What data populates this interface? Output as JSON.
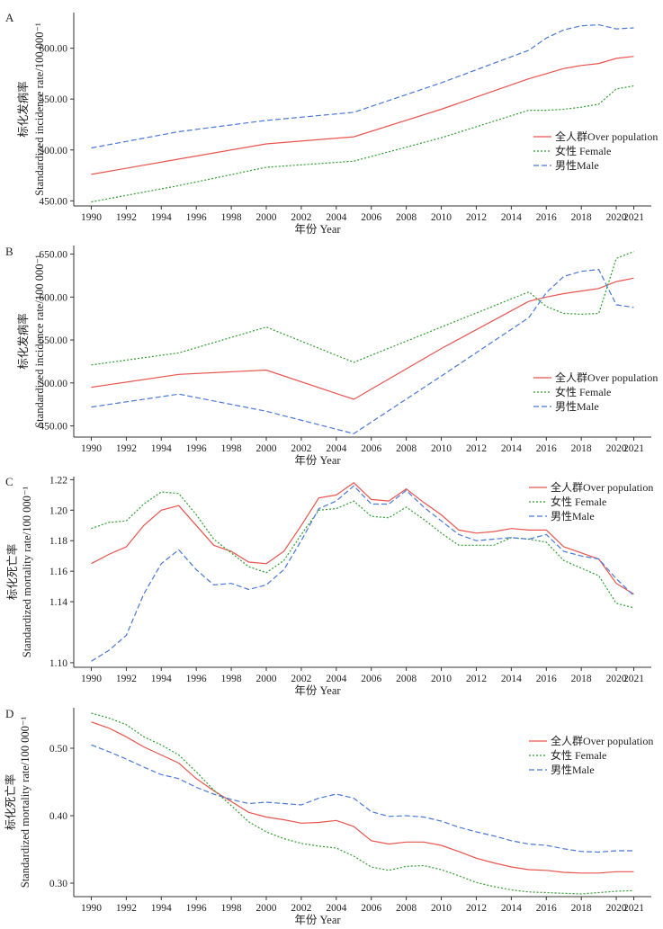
{
  "colors": {
    "total": "#e8544e",
    "female": "#2e9e2e",
    "male": "#4a78d6"
  },
  "legend": {
    "total": "全人群Over population",
    "female": "女性 Female",
    "male": "男性Male"
  },
  "chart_data": [
    {
      "panel": "A",
      "type": "line",
      "ylabel_cn": "标化发病率",
      "ylabel_en": "Standardized incidence rate/100 000⁻¹",
      "xlabel": "年份 Year",
      "xlim": [
        1989,
        2022
      ],
      "ylim": [
        445,
        635
      ],
      "xticks": [
        1990,
        1992,
        1994,
        1996,
        1998,
        2000,
        2002,
        2004,
        2006,
        2008,
        2010,
        2012,
        2014,
        2016,
        2018,
        2020,
        2021
      ],
      "yticks": [
        450,
        500,
        550,
        600
      ],
      "ytick_labels": [
        "450.00",
        "500.00",
        "550.00",
        "600.00"
      ],
      "legend_position": "right",
      "x": [
        1990,
        1995,
        2000,
        2005,
        2010,
        2015,
        2016,
        2017,
        2018,
        2019,
        2020,
        2021
      ],
      "series": [
        {
          "key": "total",
          "name": "全人群Over population",
          "values": [
            476,
            491,
            506,
            513,
            540,
            570,
            575,
            580,
            583,
            585,
            590,
            592
          ]
        },
        {
          "key": "female",
          "name": "女性 Female",
          "values": [
            449,
            465,
            483,
            489,
            512,
            539,
            539,
            540,
            542,
            545,
            560,
            563
          ]
        },
        {
          "key": "male",
          "name": "男性Male",
          "values": [
            502,
            518,
            529,
            537,
            566,
            598,
            610,
            618,
            622,
            623,
            619,
            620
          ]
        }
      ]
    },
    {
      "panel": "B",
      "type": "line",
      "ylabel_cn": "标化发病率",
      "ylabel_en": "Standardized incidence rate/100 000⁻¹",
      "xlabel": "年份 Year",
      "xlim": [
        1989,
        2022
      ],
      "ylim": [
        437,
        660
      ],
      "xticks": [
        1990,
        1992,
        1994,
        1996,
        1998,
        2000,
        2002,
        2004,
        2006,
        2008,
        2010,
        2012,
        2014,
        2016,
        2018,
        2020,
        2021
      ],
      "yticks": [
        450,
        500,
        550,
        600,
        650
      ],
      "ytick_labels": [
        "450.00",
        "500.00",
        "550.00",
        "600.00",
        "650.00"
      ],
      "legend_position": "bottom-right",
      "x": [
        1990,
        1995,
        2000,
        2005,
        2010,
        2015,
        2016,
        2017,
        2018,
        2019,
        2020,
        2021
      ],
      "series": [
        {
          "key": "total",
          "name": "全人群Over population",
          "values": [
            495,
            510,
            515,
            481,
            540,
            595,
            600,
            604,
            607,
            610,
            618,
            622
          ]
        },
        {
          "key": "female",
          "name": "女性 Female",
          "values": [
            521,
            535,
            565,
            524,
            565,
            606,
            589,
            581,
            580,
            581,
            645,
            653
          ]
        },
        {
          "key": "male",
          "name": "男性Male",
          "values": [
            472,
            487,
            467,
            441,
            508,
            576,
            605,
            624,
            630,
            632,
            591,
            588
          ]
        }
      ]
    },
    {
      "panel": "C",
      "type": "line",
      "ylabel_cn": "标化死亡率",
      "ylabel_en": "Standardized mortality rate/100 000⁻¹",
      "xlabel": "年份 Year",
      "xlim": [
        1989,
        2022
      ],
      "ylim": [
        1.097,
        1.222
      ],
      "xticks": [
        1990,
        1992,
        1994,
        1996,
        1998,
        2000,
        2002,
        2004,
        2006,
        2008,
        2010,
        2012,
        2014,
        2016,
        2018,
        2020,
        2021
      ],
      "yticks": [
        1.1,
        1.14,
        1.16,
        1.18,
        1.2,
        1.22
      ],
      "ytick_labels": [
        "1.10",
        "1.14",
        "1.16",
        "1.18",
        "1.20",
        "1.22"
      ],
      "legend_position": "top-right",
      "x": [
        1990,
        1991,
        1992,
        1993,
        1994,
        1995,
        1996,
        1997,
        1998,
        1999,
        2000,
        2001,
        2002,
        2003,
        2004,
        2005,
        2006,
        2007,
        2008,
        2009,
        2010,
        2011,
        2012,
        2013,
        2014,
        2015,
        2016,
        2017,
        2018,
        2019,
        2020,
        2021
      ],
      "series": [
        {
          "key": "total",
          "name": "全人群Over population",
          "values": [
            1.165,
            1.171,
            1.176,
            1.19,
            1.2,
            1.203,
            1.19,
            1.177,
            1.173,
            1.166,
            1.165,
            1.173,
            1.19,
            1.208,
            1.21,
            1.218,
            1.207,
            1.206,
            1.214,
            1.205,
            1.197,
            1.187,
            1.185,
            1.186,
            1.188,
            1.187,
            1.187,
            1.176,
            1.172,
            1.168,
            1.152,
            1.145
          ]
        },
        {
          "key": "female",
          "name": "女性 Female",
          "values": [
            1.188,
            1.192,
            1.193,
            1.204,
            1.212,
            1.211,
            1.197,
            1.181,
            1.172,
            1.163,
            1.159,
            1.167,
            1.184,
            1.2,
            1.201,
            1.206,
            1.196,
            1.195,
            1.202,
            1.194,
            1.185,
            1.177,
            1.177,
            1.177,
            1.182,
            1.181,
            1.179,
            1.167,
            1.162,
            1.157,
            1.139,
            1.136
          ]
        },
        {
          "key": "male",
          "name": "男性Male",
          "values": [
            1.101,
            1.108,
            1.118,
            1.145,
            1.165,
            1.174,
            1.161,
            1.151,
            1.152,
            1.148,
            1.151,
            1.161,
            1.18,
            1.201,
            1.206,
            1.216,
            1.204,
            1.204,
            1.213,
            1.202,
            1.193,
            1.184,
            1.18,
            1.181,
            1.182,
            1.181,
            1.184,
            1.173,
            1.17,
            1.168,
            1.155,
            1.144
          ]
        }
      ]
    },
    {
      "panel": "D",
      "type": "line",
      "ylabel_cn": "标化死亡率",
      "ylabel_en": "Standardized mortality rate/100 000⁻¹",
      "xlabel": "年份 Year",
      "xlim": [
        1989,
        2022
      ],
      "ylim": [
        0.28,
        0.56
      ],
      "xticks": [
        1990,
        1992,
        1994,
        1996,
        1998,
        2000,
        2002,
        2004,
        2006,
        2008,
        2010,
        2012,
        2014,
        2016,
        2018,
        2020,
        2021
      ],
      "yticks": [
        0.3,
        0.4,
        0.5
      ],
      "ytick_labels": [
        "0.30",
        "0.40",
        "0.50"
      ],
      "legend_position": "top-right",
      "x": [
        1990,
        1991,
        1992,
        1993,
        1994,
        1995,
        1996,
        1997,
        1998,
        1999,
        2000,
        2001,
        2002,
        2003,
        2004,
        2005,
        2006,
        2007,
        2008,
        2009,
        2010,
        2011,
        2012,
        2013,
        2014,
        2015,
        2016,
        2017,
        2018,
        2019,
        2020,
        2021
      ],
      "series": [
        {
          "key": "total",
          "name": "全人群Over population",
          "values": [
            0.539,
            0.53,
            0.517,
            0.502,
            0.49,
            0.478,
            0.455,
            0.437,
            0.421,
            0.405,
            0.398,
            0.394,
            0.389,
            0.39,
            0.393,
            0.384,
            0.363,
            0.358,
            0.361,
            0.361,
            0.356,
            0.347,
            0.337,
            0.33,
            0.324,
            0.32,
            0.319,
            0.316,
            0.315,
            0.315,
            0.317,
            0.317
          ]
        },
        {
          "key": "female",
          "name": "女性 Female",
          "values": [
            0.552,
            0.545,
            0.535,
            0.517,
            0.505,
            0.49,
            0.465,
            0.438,
            0.415,
            0.391,
            0.376,
            0.366,
            0.359,
            0.355,
            0.352,
            0.34,
            0.324,
            0.319,
            0.325,
            0.326,
            0.32,
            0.311,
            0.301,
            0.295,
            0.29,
            0.287,
            0.286,
            0.285,
            0.284,
            0.286,
            0.288,
            0.289
          ]
        },
        {
          "key": "male",
          "name": "男性Male",
          "values": [
            0.505,
            0.495,
            0.484,
            0.472,
            0.461,
            0.455,
            0.442,
            0.432,
            0.424,
            0.418,
            0.42,
            0.418,
            0.416,
            0.426,
            0.432,
            0.426,
            0.406,
            0.399,
            0.4,
            0.398,
            0.392,
            0.383,
            0.376,
            0.37,
            0.363,
            0.358,
            0.356,
            0.351,
            0.347,
            0.346,
            0.348,
            0.348
          ]
        }
      ]
    }
  ]
}
